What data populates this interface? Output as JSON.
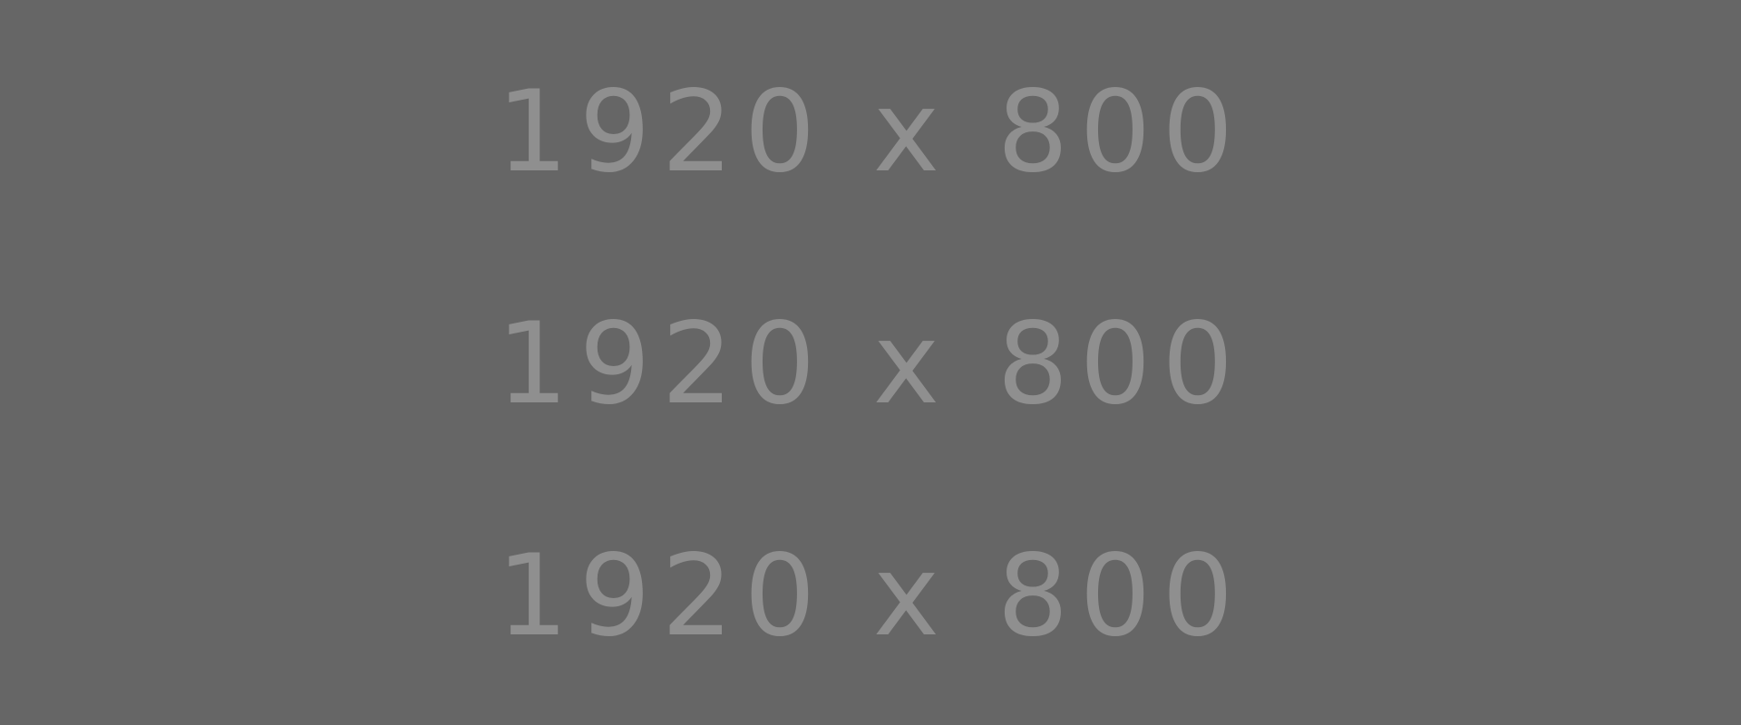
{
  "placeholder": {
    "lines": [
      "1920 x 800",
      "1920 x 800",
      "1920 x 800"
    ],
    "background_color": "#666666",
    "text_color": "#8f8f8f"
  }
}
